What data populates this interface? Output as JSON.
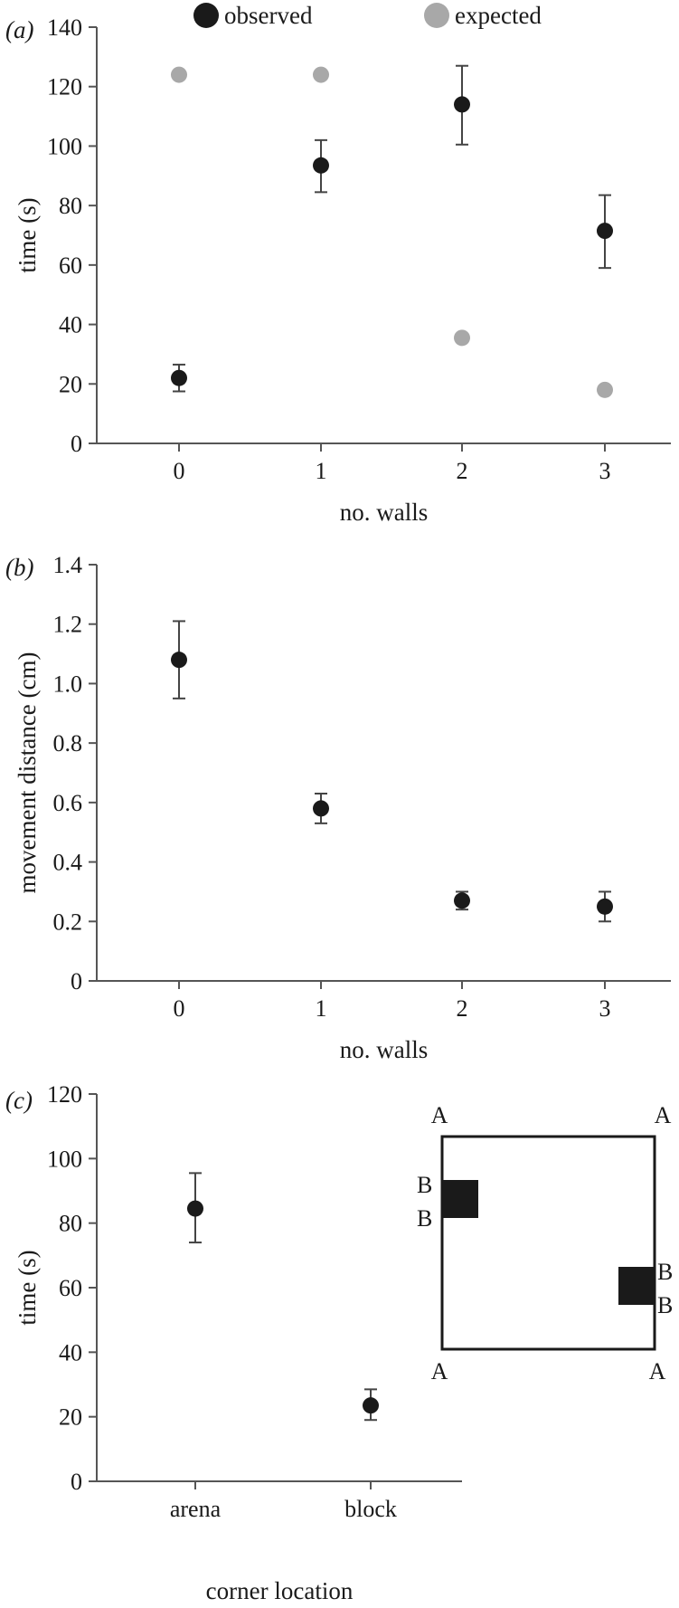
{
  "chart_data": [
    {
      "type": "scatter",
      "panel_label": "(a)",
      "xlabel": "no. walls",
      "ylabel": "time (s)",
      "categories": [
        "0",
        "1",
        "2",
        "3"
      ],
      "ylim": [
        0,
        140
      ],
      "yticks": [
        0,
        20,
        40,
        60,
        80,
        100,
        120,
        140
      ],
      "grid": false,
      "legend": "top",
      "series": [
        {
          "name": "observed",
          "color": "#1a1a1a",
          "values": [
            22,
            93.5,
            114,
            71.5
          ],
          "err_low": [
            17.5,
            84.5,
            100.5,
            59
          ],
          "err_high": [
            26.5,
            102,
            127,
            83.5
          ]
        },
        {
          "name": "expected",
          "color": "#a8a8a8",
          "values": [
            124,
            124,
            35.5,
            18
          ]
        }
      ]
    },
    {
      "type": "scatter",
      "panel_label": "(b)",
      "xlabel": "no. walls",
      "ylabel": "movement distance (cm)",
      "categories": [
        "0",
        "1",
        "2",
        "3"
      ],
      "ylim": [
        0,
        1.4
      ],
      "yticks": [
        "0",
        "0.2",
        "0.4",
        "0.6",
        "0.8",
        "1.0",
        "1.2",
        "1.4"
      ],
      "grid": false,
      "series": [
        {
          "color": "#1a1a1a",
          "values": [
            1.08,
            0.58,
            0.27,
            0.25
          ],
          "err_low": [
            0.95,
            0.53,
            0.24,
            0.2
          ],
          "err_high": [
            1.21,
            0.63,
            0.3,
            0.3
          ]
        }
      ]
    },
    {
      "type": "scatter",
      "panel_label": "(c)",
      "xlabel": "corner location",
      "ylabel": "time (s)",
      "categories": [
        "arena",
        "block"
      ],
      "ylim": [
        0,
        120
      ],
      "yticks": [
        0,
        20,
        40,
        60,
        80,
        100,
        120
      ],
      "grid": false,
      "series": [
        {
          "color": "#1a1a1a",
          "values": [
            84.5,
            23.5
          ],
          "err_low": [
            74,
            19
          ],
          "err_high": [
            95.5,
            28.5
          ]
        }
      ],
      "inset": {
        "corner_labels": [
          "A",
          "A",
          "A",
          "A"
        ],
        "block_labels": [
          "B",
          "B",
          "B",
          "B"
        ]
      }
    }
  ]
}
